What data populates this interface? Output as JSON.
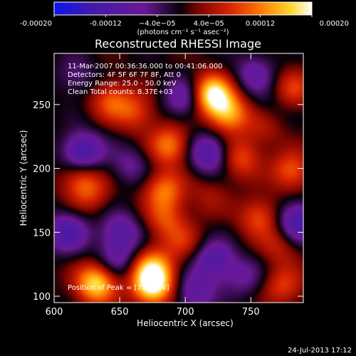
{
  "chart_data": {
    "type": "heatmap",
    "title": "Reconstructed RHESSI Image",
    "xlabel": "Heliocentric X (arcsec)",
    "ylabel": "Heliocentric Y (arcsec)",
    "xlim": [
      600,
      790
    ],
    "ylim": [
      95,
      290
    ],
    "x_ticks": [
      "600",
      "650",
      "700",
      "750"
    ],
    "y_ticks": [
      "100",
      "150",
      "200",
      "250"
    ],
    "colorbar": {
      "ticks": [
        "-0.00020",
        "-0.00012",
        "−4.0e−05",
        "4.0e−05",
        "0.00012",
        "0.00020"
      ],
      "range": [
        -0.0002,
        0.0002
      ],
      "unit_label": "(photons cm⁻² s⁻¹ asec⁻²)"
    },
    "annotations": [
      "11-Mar-2007 00:36:36.000 to 00:41:06.000",
      "Detectors: 4F 5F 6F 7F 8F, Att 0",
      "Energy Range: 25.0 - 50.0 keV",
      "Clean      Total counts: 8.37E+03"
    ],
    "peak_label": "Position of Peak = [719,256]",
    "peak": [
      719,
      256
    ],
    "sources": [
      {
        "x": 720,
        "y": 258,
        "v": 0.0002
      },
      {
        "x": 733,
        "y": 243,
        "v": 0.00014
      },
      {
        "x": 632,
        "y": 110,
        "v": 0.00018
      },
      {
        "x": 675,
        "y": 108,
        "v": 0.00019
      },
      {
        "x": 675,
        "y": 122,
        "v": 0.00013
      },
      {
        "x": 643,
        "y": 253,
        "v": 9e-05
      },
      {
        "x": 662,
        "y": 244,
        "v": 8e-05
      },
      {
        "x": 684,
        "y": 183,
        "v": 0.00011
      },
      {
        "x": 685,
        "y": 160,
        "v": 8e-05
      },
      {
        "x": 698,
        "y": 142,
        "v": 6e-05
      },
      {
        "x": 620,
        "y": 192,
        "v": 8e-05
      },
      {
        "x": 628,
        "y": 180,
        "v": 6e-05
      },
      {
        "x": 688,
        "y": 218,
        "v": 0.00012
      },
      {
        "x": 756,
        "y": 162,
        "v": 9e-05
      },
      {
        "x": 772,
        "y": 140,
        "v": 6e-05
      },
      {
        "x": 742,
        "y": 208,
        "v": 9e-05
      },
      {
        "x": 760,
        "y": 232,
        "v": 5e-05
      },
      {
        "x": 782,
        "y": 262,
        "v": 8e-05
      },
      {
        "x": 781,
        "y": 198,
        "v": 0.0001
      },
      {
        "x": 775,
        "y": 108,
        "v": 8e-05
      },
      {
        "x": 718,
        "y": 178,
        "v": 4e-05
      },
      {
        "x": 617,
        "y": 272,
        "v": -5e-05
      },
      {
        "x": 622,
        "y": 213,
        "v": -0.00014
      },
      {
        "x": 610,
        "y": 150,
        "v": -0.00012
      },
      {
        "x": 651,
        "y": 150,
        "v": -0.0001
      },
      {
        "x": 658,
        "y": 203,
        "v": -6e-05
      },
      {
        "x": 700,
        "y": 255,
        "v": -0.0001
      },
      {
        "x": 718,
        "y": 212,
        "v": -0.00012
      },
      {
        "x": 722,
        "y": 128,
        "v": -0.00011
      },
      {
        "x": 707,
        "y": 103,
        "v": -9e-05
      },
      {
        "x": 786,
        "y": 158,
        "v": -0.00014
      },
      {
        "x": 753,
        "y": 274,
        "v": -8e-05
      },
      {
        "x": 648,
        "y": 128,
        "v": -7e-05
      },
      {
        "x": 745,
        "y": 115,
        "v": -6e-05
      },
      {
        "x": 765,
        "y": 248,
        "v": -3e-05
      }
    ]
  },
  "footer": {
    "date": "24-Jul-2013 17:12"
  }
}
